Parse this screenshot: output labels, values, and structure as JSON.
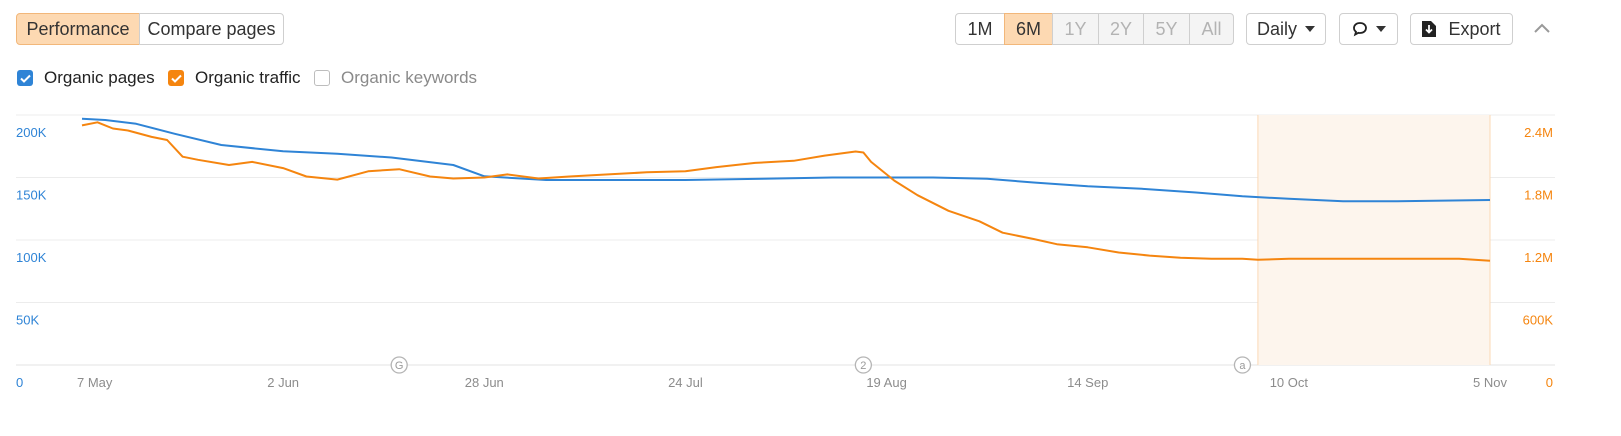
{
  "toolbar": {
    "performance_label": "Performance",
    "compare_label": "Compare pages",
    "ranges": [
      "1M",
      "6M",
      "1Y",
      "2Y",
      "5Y",
      "All"
    ],
    "active_range": "6M",
    "interval_label": "Daily",
    "export_label": "Export",
    "icons": {
      "interval": "caret-down-icon",
      "comment": "speech-bubble-icon",
      "export": "download-icon",
      "collapse": "chevron-up-icon"
    }
  },
  "legend": [
    {
      "label": "Organic pages",
      "checked": true,
      "color": "#2f84d6"
    },
    {
      "label": "Organic traffic",
      "checked": true,
      "color": "#f5850f"
    },
    {
      "label": "Organic keywords",
      "checked": false,
      "color": "#999999"
    }
  ],
  "chart_data": {
    "type": "line",
    "x": [
      "7 May",
      "2 Jun",
      "28 Jun",
      "24 Jul",
      "19 Aug",
      "14 Sep",
      "10 Oct",
      "5 Nov"
    ],
    "y_left": {
      "ticks": [
        "0",
        "50K",
        "100K",
        "150K",
        "200K"
      ],
      "lim": [
        0,
        200000
      ],
      "color": "#2f84d6"
    },
    "y_right": {
      "ticks": [
        "0",
        "600K",
        "1.2M",
        "1.8M",
        "2.4M"
      ],
      "lim": [
        0,
        2400000
      ],
      "color": "#f5850f"
    },
    "grid": true,
    "highlight_range": [
      "6 Oct",
      "5 Nov"
    ],
    "annotations": [
      {
        "date": "17 Jun",
        "label": "G"
      },
      {
        "date": "16 Aug",
        "label": "2"
      },
      {
        "date": "4 Oct",
        "label": "a"
      }
    ],
    "series": [
      {
        "name": "Organic pages",
        "axis": "left",
        "color": "#2f84d6",
        "points": [
          [
            "7 May",
            197000
          ],
          [
            "10 May",
            196000
          ],
          [
            "14 May",
            193000
          ],
          [
            "19 May",
            185000
          ],
          [
            "25 May",
            176000
          ],
          [
            "2 Jun",
            171000
          ],
          [
            "9 Jun",
            169000
          ],
          [
            "16 Jun",
            166000
          ],
          [
            "24 Jun",
            160000
          ],
          [
            "28 Jun",
            151000
          ],
          [
            "6 Jul",
            148000
          ],
          [
            "14 Jul",
            148000
          ],
          [
            "24 Jul",
            148000
          ],
          [
            "3 Aug",
            149000
          ],
          [
            "12 Aug",
            150000
          ],
          [
            "19 Aug",
            150000
          ],
          [
            "25 Aug",
            150000
          ],
          [
            "1 Sep",
            149000
          ],
          [
            "7 Sep",
            146000
          ],
          [
            "14 Sep",
            143000
          ],
          [
            "21 Sep",
            141000
          ],
          [
            "28 Sep",
            138000
          ],
          [
            "4 Oct",
            135000
          ],
          [
            "10 Oct",
            133000
          ],
          [
            "17 Oct",
            131000
          ],
          [
            "24 Oct",
            131000
          ],
          [
            "5 Nov",
            132000
          ]
        ]
      },
      {
        "name": "Organic traffic",
        "axis": "right",
        "color": "#f5850f",
        "points": [
          [
            "7 May",
            2300000
          ],
          [
            "9 May",
            2330000
          ],
          [
            "11 May",
            2270000
          ],
          [
            "13 May",
            2250000
          ],
          [
            "16 May",
            2190000
          ],
          [
            "18 May",
            2160000
          ],
          [
            "20 May",
            2000000
          ],
          [
            "22 May",
            1970000
          ],
          [
            "26 May",
            1920000
          ],
          [
            "29 May",
            1950000
          ],
          [
            "2 Jun",
            1890000
          ],
          [
            "5 Jun",
            1810000
          ],
          [
            "9 Jun",
            1780000
          ],
          [
            "13 Jun",
            1860000
          ],
          [
            "17 Jun",
            1880000
          ],
          [
            "21 Jun",
            1810000
          ],
          [
            "24 Jun",
            1790000
          ],
          [
            "28 Jun",
            1800000
          ],
          [
            "1 Jul",
            1830000
          ],
          [
            "5 Jul",
            1790000
          ],
          [
            "9 Jul",
            1810000
          ],
          [
            "14 Jul",
            1830000
          ],
          [
            "19 Jul",
            1850000
          ],
          [
            "24 Jul",
            1860000
          ],
          [
            "28 Jul",
            1900000
          ],
          [
            "2 Aug",
            1940000
          ],
          [
            "7 Aug",
            1960000
          ],
          [
            "11 Aug",
            2010000
          ],
          [
            "15 Aug",
            2050000
          ],
          [
            "16 Aug",
            2040000
          ],
          [
            "17 Aug",
            1950000
          ],
          [
            "20 Aug",
            1770000
          ],
          [
            "23 Aug",
            1630000
          ],
          [
            "27 Aug",
            1480000
          ],
          [
            "31 Aug",
            1380000
          ],
          [
            "3 Sep",
            1270000
          ],
          [
            "7 Sep",
            1210000
          ],
          [
            "10 Sep",
            1160000
          ],
          [
            "14 Sep",
            1130000
          ],
          [
            "18 Sep",
            1080000
          ],
          [
            "22 Sep",
            1050000
          ],
          [
            "26 Sep",
            1030000
          ],
          [
            "30 Sep",
            1020000
          ],
          [
            "4 Oct",
            1020000
          ],
          [
            "6 Oct",
            1010000
          ],
          [
            "10 Oct",
            1020000
          ],
          [
            "14 Oct",
            1020000
          ],
          [
            "20 Oct",
            1020000
          ],
          [
            "26 Oct",
            1020000
          ],
          [
            "1 Nov",
            1020000
          ],
          [
            "5 Nov",
            1000000
          ]
        ]
      }
    ]
  }
}
